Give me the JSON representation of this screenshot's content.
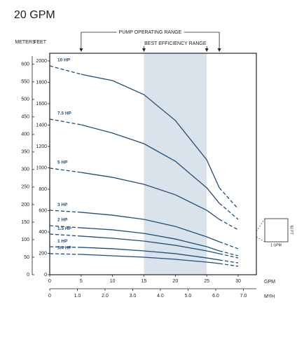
{
  "chart_data": {
    "type": "line",
    "title": "20 GPM",
    "y_label": "FEET",
    "y2_label": "METERS",
    "x_label": "GPM",
    "x2_label": "M³/H",
    "xlim": [
      0,
      32.9
    ],
    "xticks": [
      0,
      5,
      10,
      15,
      20,
      25,
      30
    ],
    "x2lim": [
      0,
      7.47
    ],
    "x2ticks": [
      0,
      {
        "value": 1,
        "label": "1.0"
      },
      {
        "value": 2,
        "label": "2.0"
      },
      {
        "value": 3,
        "label": "3.0"
      },
      {
        "value": 4,
        "label": "4.0"
      },
      {
        "value": 5,
        "label": "5.0"
      },
      {
        "value": 6,
        "label": "6.0"
      },
      {
        "value": 7,
        "label": "7.0"
      }
    ],
    "ylim": [
      0,
      2072
    ],
    "yticks": [
      0,
      200,
      400,
      600,
      800,
      1000,
      1200,
      1400,
      1600,
      1800,
      2000
    ],
    "y2lim": [
      0,
      631.5
    ],
    "y2ticks": [
      0,
      50,
      100,
      150,
      200,
      250,
      300,
      350,
      400,
      450,
      500,
      550,
      600
    ],
    "pump_operating_range": {
      "label": "PUMP OPERATING RANGE",
      "range": [
        5,
        27
      ]
    },
    "best_efficiency_range": {
      "label": "BEST EFFICIENCY RANGE",
      "range": [
        15,
        25
      ],
      "color": "#dae3ec"
    },
    "scale_box": {
      "x_label": "1 GPM",
      "y_label": "50 FT"
    },
    "x": [
      0,
      5,
      10,
      15,
      20,
      25,
      27,
      30
    ],
    "series": [
      {
        "name": "10 HP",
        "color": "#1f4e7a",
        "values": [
          1954,
          1875,
          1816,
          1685,
          1443,
          1075,
          813,
          616
        ]
      },
      {
        "name": "7.5 HP",
        "color": "#1f4e7a",
        "values": [
          1456,
          1403,
          1325,
          1226,
          1062,
          813,
          669,
          518
        ]
      },
      {
        "name": "5 HP",
        "color": "#1f4e7a",
        "values": [
          997,
          957,
          911,
          846,
          748,
          603,
          518,
          420
        ]
      },
      {
        "name": "3 HP",
        "color": "#1f4e7a",
        "values": [
          603,
          584,
          557,
          518,
          452,
          354,
          308,
          243
        ]
      },
      {
        "name": "2 HP",
        "color": "#1f4e7a",
        "values": [
          459,
          439,
          420,
          387,
          334,
          262,
          223,
          177
        ]
      },
      {
        "name": "1.5 HP",
        "color": "#1f4e7a",
        "values": [
          380,
          361,
          341,
          315,
          275,
          223,
          197,
          157
        ]
      },
      {
        "name": "1 HP",
        "color": "#1f4e7a",
        "values": [
          262,
          256,
          243,
          223,
          197,
          157,
          138,
          111
        ]
      },
      {
        "name": "3/4 HP",
        "color": "#1f4e7a",
        "values": [
          197,
          190,
          177,
          164,
          144,
          118,
          105,
          79
        ]
      }
    ]
  }
}
